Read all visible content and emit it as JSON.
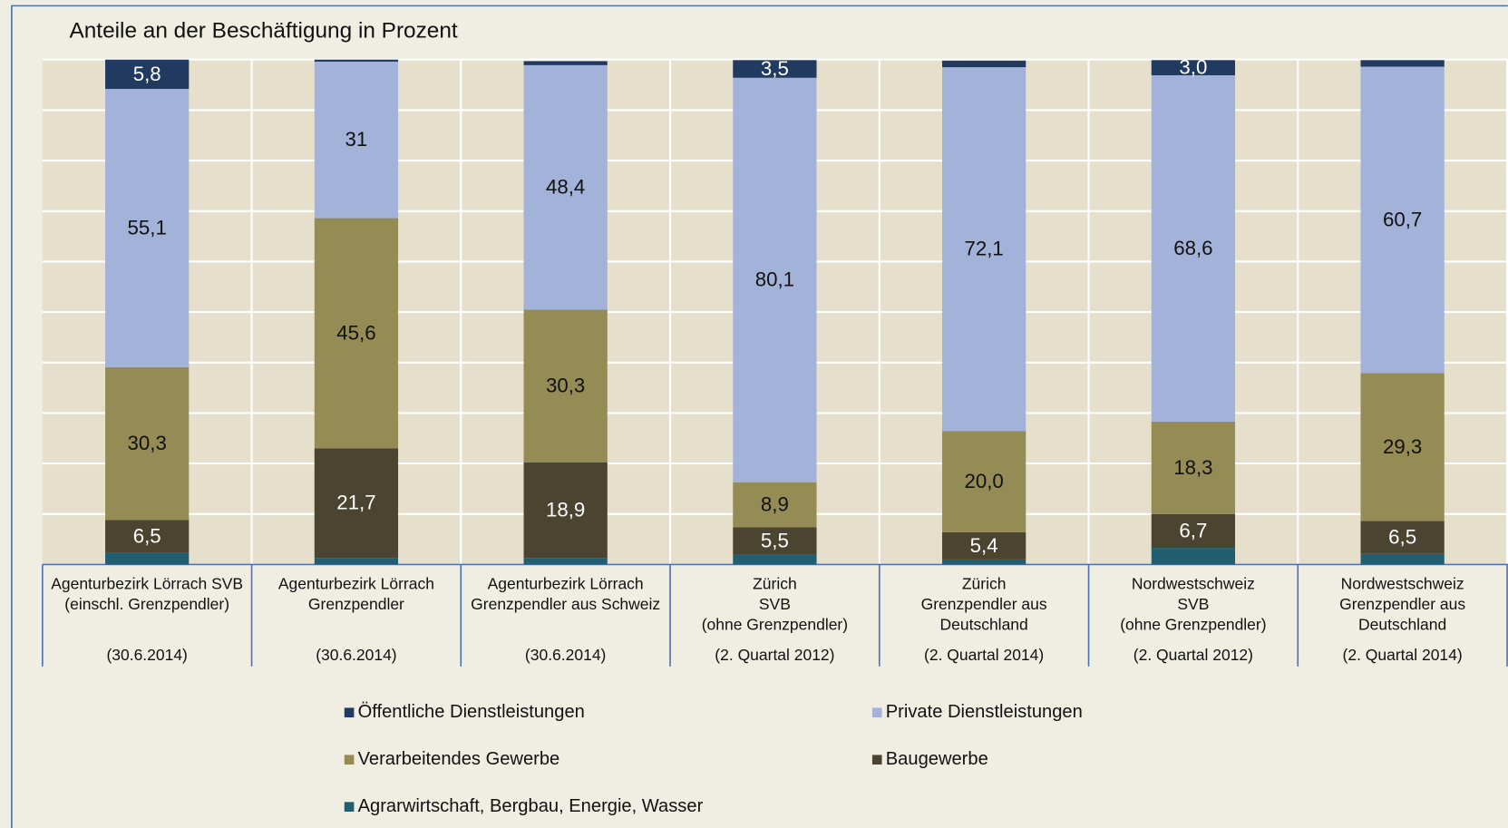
{
  "chart_data": {
    "type": "bar",
    "stacked": true,
    "title": "Anteile an der Beschäftigung in Prozent",
    "categories": [
      "Agenturbezirk Lörrach SVB\n(einschl. Grenzpendler)\n(30.6.2014)",
      "Agenturbezirk Lörrach\nGrenzpendler\n(30.6.2014)",
      "Agenturbezirk Lörrach\nGrenzpendler aus Schweiz\n(30.6.2014)",
      "Zürich\nSVB\n(ohne Grenzpendler)\n(2. Quartal 2012)",
      "Zürich\nGrenzpendler aus\nDeutschland\n(2. Quartal 2014)",
      "Nordwestschweiz\nSVB\n(ohne Grenzpendler)\n(2. Quartal 2012)",
      "Nordwestschweiz\nGrenzpendler aus\nDeutschland\n(2. Quartal 2014)"
    ],
    "series": [
      {
        "name": "Öffentliche Dienstleistungen",
        "color": "#213b60",
        "values": [
          5.8,
          0.4,
          0.8,
          3.5,
          1.3,
          3.0,
          1.3
        ],
        "value_labels": [
          "5,8",
          null,
          null,
          "3,5",
          null,
          "3,0",
          null
        ]
      },
      {
        "name": "Private Dienstleistungen",
        "color": "#a3b2d8",
        "values": [
          55.1,
          31,
          48.4,
          80.1,
          72.1,
          68.6,
          60.7
        ],
        "value_labels": [
          "55,1",
          "31",
          "48,4",
          "80,1",
          "72,1",
          "68,6",
          "60,7"
        ]
      },
      {
        "name": "Verarbeitendes Gewerbe",
        "color": "#958b55",
        "values": [
          30.3,
          45.6,
          30.3,
          8.9,
          20.0,
          18.3,
          29.3
        ],
        "value_labels": [
          "30,3",
          "45,6",
          "30,3",
          "8,9",
          "20,0",
          "18,3",
          "29,3"
        ]
      },
      {
        "name": "Baugewerbe",
        "color": "#4a4430",
        "values": [
          6.5,
          21.7,
          18.9,
          5.5,
          5.4,
          6.7,
          6.5
        ],
        "value_labels": [
          "6,5",
          "21,7",
          "18,9",
          "5,5",
          "5,4",
          "6,7",
          "6,5"
        ]
      },
      {
        "name": "Agrarwirtschaft, Bergbau, Energie, Wasser",
        "color": "#215e6f",
        "values": [
          2.3,
          1.3,
          1.3,
          1.9,
          1.0,
          3.3,
          2.1
        ],
        "value_labels": [
          null,
          null,
          null,
          null,
          null,
          null,
          null
        ]
      }
    ],
    "ylim": [
      0,
      100
    ],
    "yticks": [
      0,
      10,
      20,
      30,
      40,
      50,
      60,
      70,
      80,
      90,
      100
    ],
    "grid": true
  }
}
